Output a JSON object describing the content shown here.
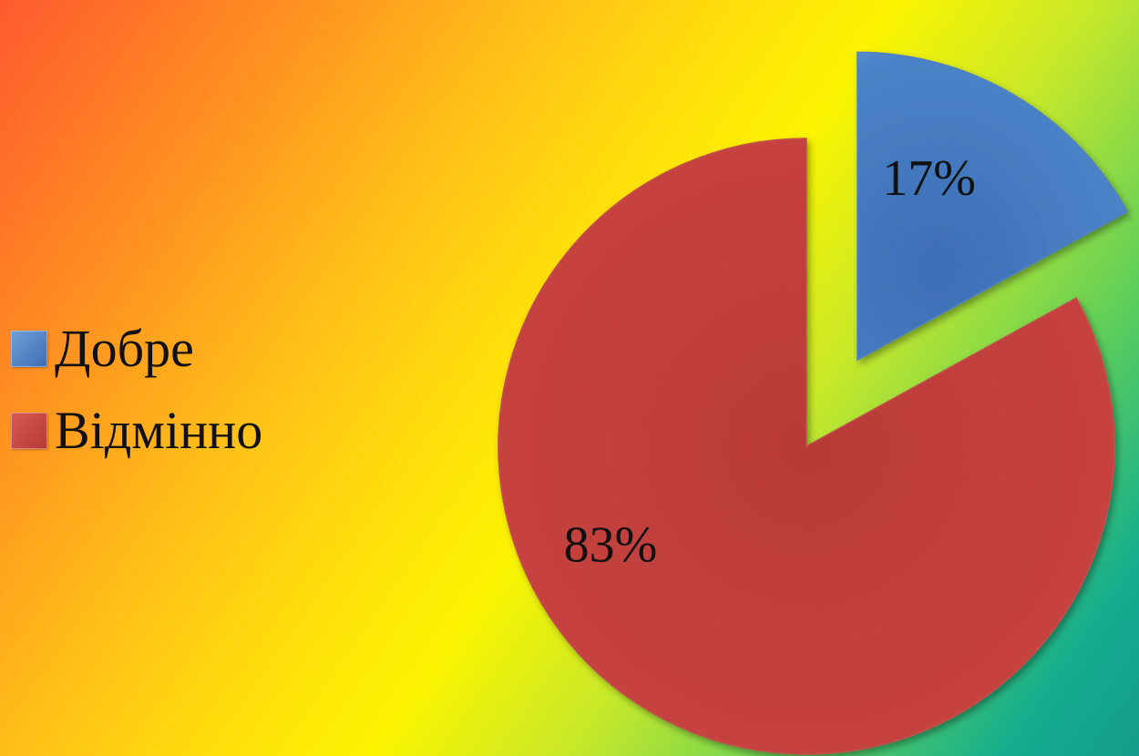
{
  "chart_data": {
    "type": "pie",
    "series": [
      {
        "name": "Добре",
        "value": 17,
        "label": "17%",
        "color": "#4f81bd",
        "exploded": true
      },
      {
        "name": "Відмінно",
        "value": 83,
        "label": "83%",
        "color": "#c0504d",
        "exploded": false
      }
    ],
    "legend": {
      "placement": "left",
      "items": [
        "Добре",
        "Відмінно"
      ]
    },
    "title": "",
    "data_labels": true
  }
}
